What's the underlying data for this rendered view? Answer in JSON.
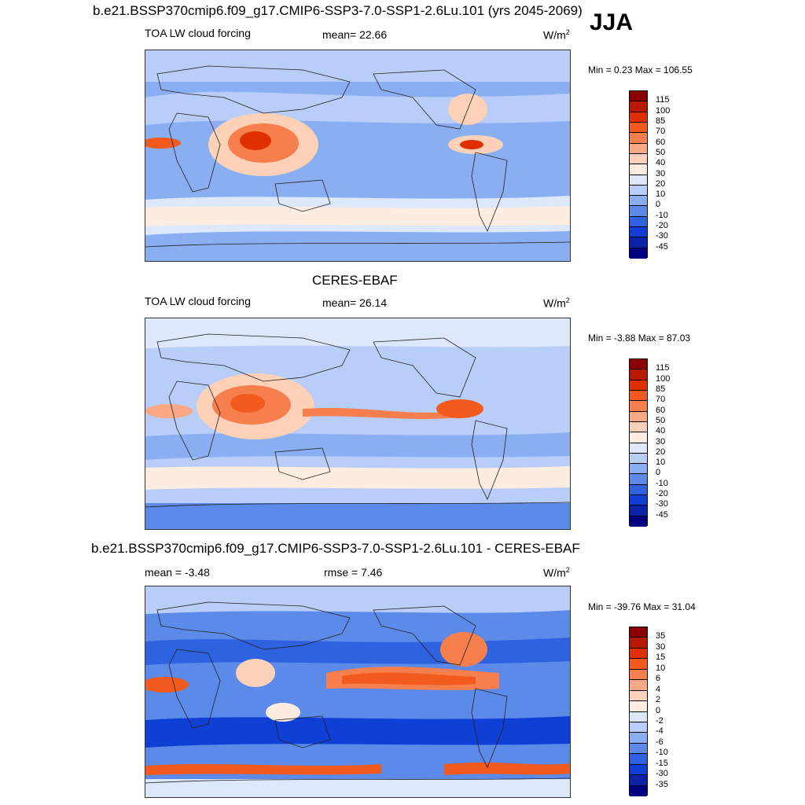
{
  "season": "JJA",
  "chart_data": [
    {
      "type": "heatmap",
      "title": "b.e21.BSSP370cmip6.f09_g17.CMIP6-SSP3-7.0-SSP1-2.6Lu.101 (yrs 2045-2069)",
      "left_label": "TOA LW cloud forcing",
      "stat_label": "mean=  22.66",
      "units": "W/m",
      "units_sup": "2",
      "minmax": "Min =   0.23 Max = 106.55",
      "colorbar_labels": [
        "115",
        "100",
        "85",
        "70",
        "60",
        "50",
        "40",
        "30",
        "20",
        "10",
        "0",
        "-10",
        "-20",
        "-30",
        "-45"
      ],
      "colorbar_colors": [
        "#8b0000",
        "#b81a00",
        "#e03000",
        "#f25a1e",
        "#f77f4d",
        "#fba885",
        "#fdd0b8",
        "#fdece0",
        "#dde8fb",
        "#b8cdf7",
        "#8aaef2",
        "#5b8ae8",
        "#2f62e0",
        "#0f3fd4",
        "#0a22a8",
        "#000080"
      ]
    },
    {
      "type": "heatmap",
      "title": "CERES-EBAF",
      "left_label": "TOA LW cloud forcing",
      "stat_label": "mean=  26.14",
      "units": "W/m",
      "units_sup": "2",
      "minmax": "Min =  -3.88 Max =  87.03",
      "colorbar_labels": [
        "115",
        "100",
        "85",
        "70",
        "60",
        "50",
        "40",
        "30",
        "20",
        "10",
        "0",
        "-10",
        "-20",
        "-30",
        "-45"
      ],
      "colorbar_colors": [
        "#8b0000",
        "#b81a00",
        "#e03000",
        "#f25a1e",
        "#f77f4d",
        "#fba885",
        "#fdd0b8",
        "#fdece0",
        "#dde8fb",
        "#b8cdf7",
        "#8aaef2",
        "#5b8ae8",
        "#2f62e0",
        "#0f3fd4",
        "#0a22a8",
        "#000080"
      ]
    },
    {
      "type": "heatmap",
      "title": "b.e21.BSSP370cmip6.f09_g17.CMIP6-SSP3-7.0-SSP1-2.6Lu.101 - CERES-EBAF",
      "left_label": "mean =  -3.48",
      "stat_label": "rmse =   7.46",
      "units": "W/m",
      "units_sup": "2",
      "minmax": "Min = -39.76 Max =  31.04",
      "colorbar_labels": [
        "35",
        "30",
        "15",
        "10",
        "6",
        "4",
        "2",
        "0",
        "-2",
        "-4",
        "-6",
        "-10",
        "-15",
        "-30",
        "-35"
      ],
      "colorbar_colors": [
        "#8b0000",
        "#b81a00",
        "#e03000",
        "#f25a1e",
        "#f77f4d",
        "#fba885",
        "#fdd0b8",
        "#fdece0",
        "#dde8fb",
        "#b8cdf7",
        "#8aaef2",
        "#5b8ae8",
        "#2f62e0",
        "#0f3fd4",
        "#0a22a8",
        "#000080"
      ]
    }
  ]
}
